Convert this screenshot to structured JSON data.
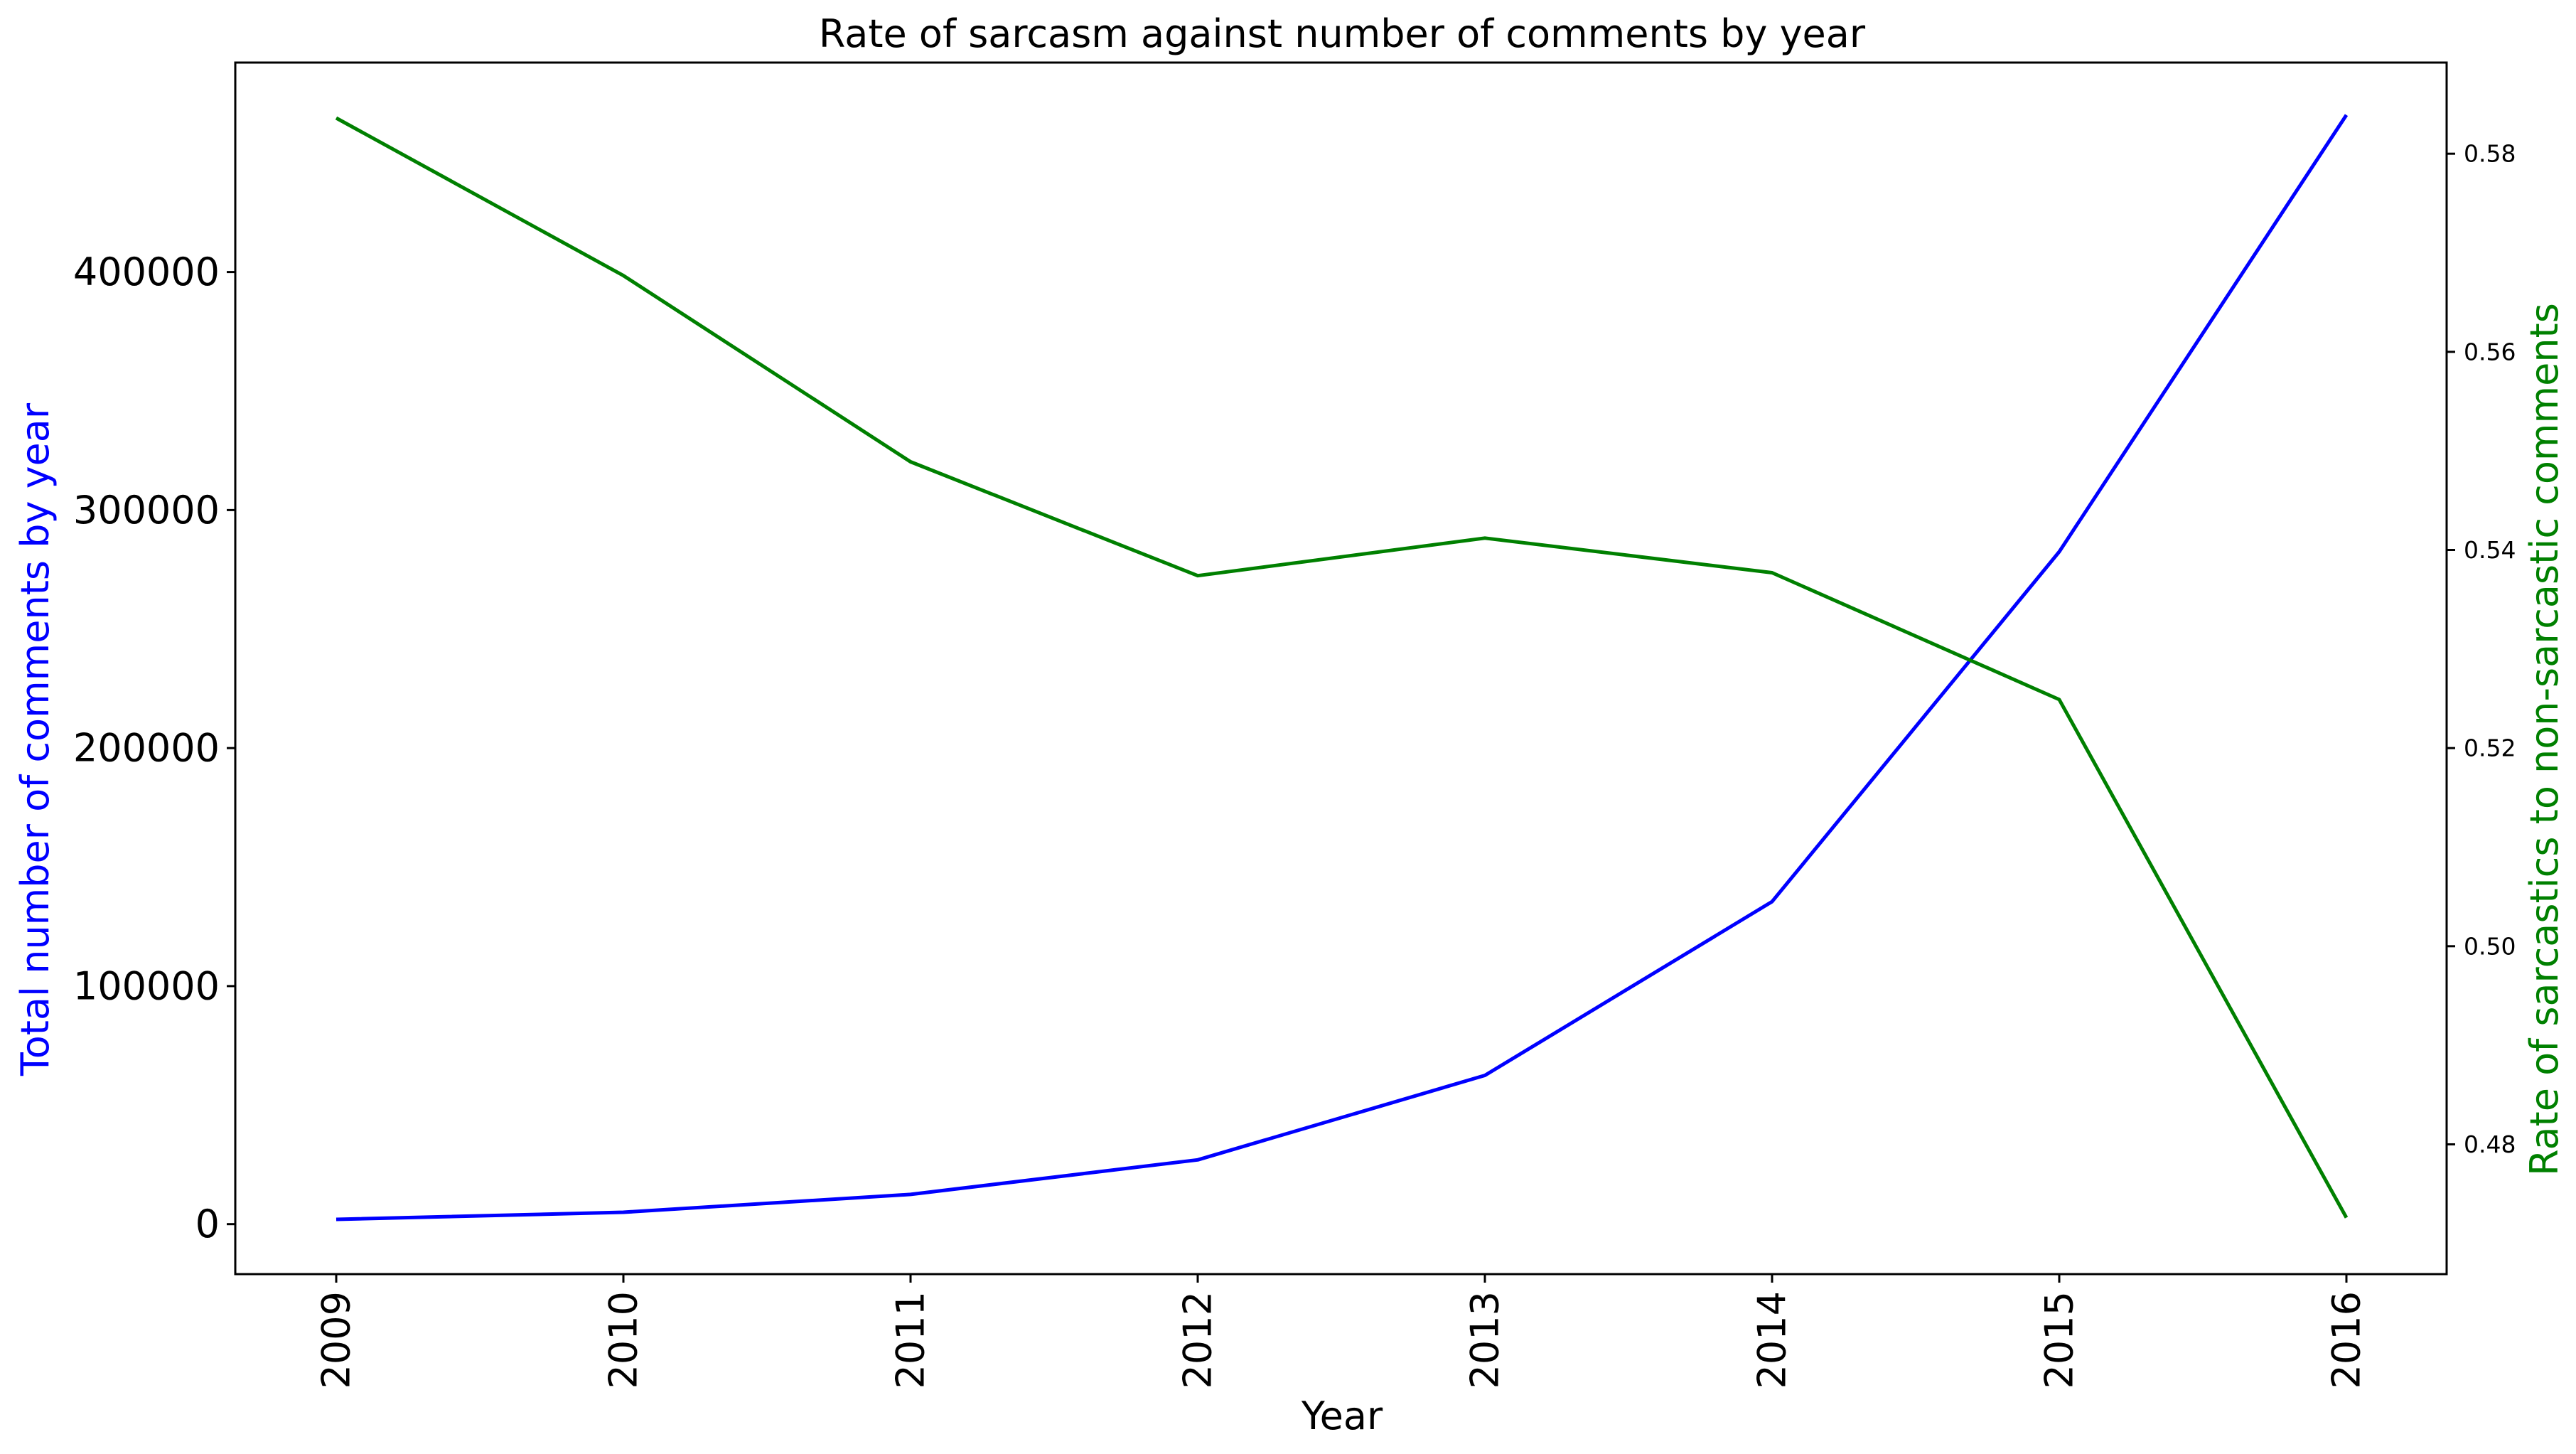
{
  "chart_data": {
    "type": "line",
    "title": "Rate of sarcasm against number of comments by year",
    "xlabel": "Year",
    "ylabel": "Total number of comments by year",
    "y2label": "Rate of sarcastics to non-sarcastic comments",
    "x": [
      "2009",
      "2010",
      "2011",
      "2012",
      "2013",
      "2014",
      "2015",
      "2016"
    ],
    "series": [
      {
        "axis": "left",
        "color": "#0000ff",
        "values": [
          2000,
          5000,
          12500,
          27000,
          62500,
          135500,
          282500,
          466000
        ]
      },
      {
        "axis": "right",
        "color": "#008000",
        "values": [
          0.5836,
          0.5677,
          0.5489,
          0.5374,
          0.5412,
          0.5377,
          0.5249,
          0.4726
        ]
      }
    ],
    "ylim": [
      -21000,
      488000
    ],
    "y2lim": [
      0.4669,
      0.5892
    ],
    "yticks": [
      "0",
      "100000",
      "200000",
      "300000",
      "400000"
    ],
    "yticks_values": [
      0,
      100000,
      200000,
      300000,
      400000
    ],
    "y2ticks": [
      "0.48",
      "0.50",
      "0.52",
      "0.54",
      "0.56",
      "0.58"
    ],
    "y2ticks_values": [
      0.48,
      0.5,
      0.52,
      0.54,
      0.56,
      0.58
    ],
    "grid": false,
    "legend": false,
    "colors": {
      "left_axis_label": "#0000ff",
      "right_axis_label": "#008000",
      "text": "#000000"
    }
  }
}
